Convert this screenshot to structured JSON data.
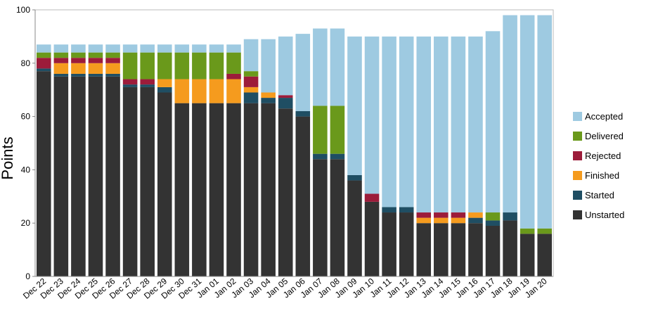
{
  "chart_data": {
    "type": "bar",
    "stacked": true,
    "ylabel": "Points",
    "xlabel": "",
    "ylim": [
      0,
      100
    ],
    "yticks": [
      0,
      20,
      40,
      60,
      80,
      100
    ],
    "grid": false,
    "legend_position": "right",
    "categories": [
      "Dec 22",
      "Dec 23",
      "Dec 24",
      "Dec 25",
      "Dec 26",
      "Dec 27",
      "Dec 28",
      "Dec 29",
      "Dec 30",
      "Dec 31",
      "Jan 01",
      "Jan 02",
      "Jan 03",
      "Jan 04",
      "Jan 05",
      "Jan 06",
      "Jan 07",
      "Jan 08",
      "Jan 09",
      "Jan 10",
      "Jan 11",
      "Jan 12",
      "Jan 13",
      "Jan 14",
      "Jan 15",
      "Jan 16",
      "Jan 17",
      "Jan 18",
      "Jan 19",
      "Jan 20"
    ],
    "series": [
      {
        "name": "Unstarted",
        "color": "#333333",
        "values": [
          77,
          75,
          75,
          75,
          75,
          71,
          71,
          69,
          65,
          65,
          65,
          65,
          65,
          65,
          63,
          60,
          44,
          44,
          36,
          28,
          24,
          24,
          20,
          20,
          20,
          20,
          19,
          21,
          16,
          16
        ]
      },
      {
        "name": "Started",
        "color": "#1f4e63",
        "values": [
          1,
          1,
          1,
          1,
          1,
          1,
          1,
          2,
          0,
          0,
          0,
          0,
          4,
          2,
          4,
          2,
          2,
          2,
          2,
          0,
          2,
          2,
          0,
          0,
          0,
          2,
          2,
          3,
          0,
          0
        ]
      },
      {
        "name": "Finished",
        "color": "#f59b1e",
        "values": [
          0,
          4,
          4,
          4,
          4,
          0,
          0,
          3,
          9,
          9,
          9,
          9,
          2,
          2,
          0,
          0,
          0,
          0,
          0,
          0,
          0,
          0,
          2,
          2,
          2,
          2,
          0,
          0,
          0,
          0
        ]
      },
      {
        "name": "Rejected",
        "color": "#9c1c3a",
        "values": [
          4,
          2,
          2,
          2,
          2,
          2,
          2,
          0,
          0,
          0,
          0,
          2,
          4,
          0,
          1,
          0,
          0,
          0,
          0,
          3,
          0,
          0,
          2,
          2,
          2,
          0,
          0,
          0,
          0,
          0
        ]
      },
      {
        "name": "Delivered",
        "color": "#6a991b",
        "values": [
          2,
          2,
          2,
          2,
          2,
          10,
          10,
          10,
          10,
          10,
          10,
          8,
          2,
          0,
          0,
          0,
          18,
          18,
          0,
          0,
          0,
          0,
          0,
          0,
          0,
          0,
          3,
          0,
          2,
          2
        ]
      },
      {
        "name": "Accepted",
        "color": "#9ecae1",
        "values": [
          3,
          3,
          3,
          3,
          3,
          3,
          3,
          3,
          3,
          3,
          3,
          3,
          12,
          20,
          22,
          29,
          29,
          29,
          52,
          59,
          64,
          64,
          66,
          66,
          66,
          66,
          68,
          74,
          80,
          80
        ]
      }
    ],
    "legend_order": [
      "Accepted",
      "Delivered",
      "Rejected",
      "Finished",
      "Started",
      "Unstarted"
    ]
  }
}
